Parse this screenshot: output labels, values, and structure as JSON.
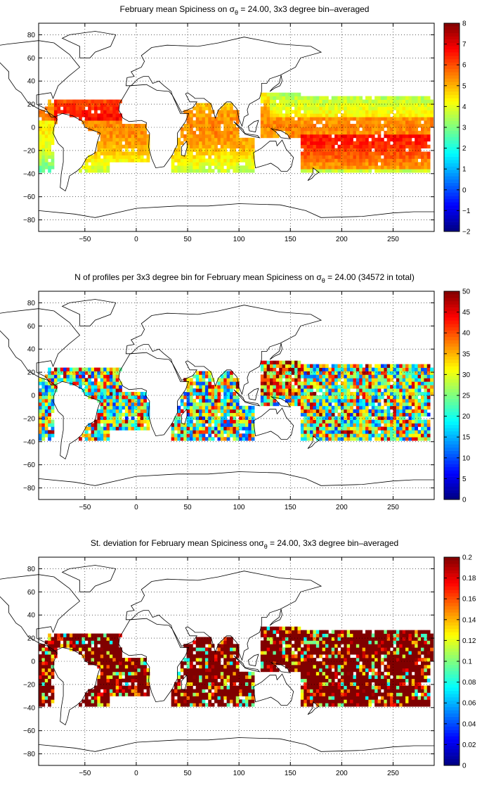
{
  "figure": {
    "background": "#ffffff"
  },
  "chart_data": [
    {
      "type": "heatmap",
      "title": {
        "pre": "February mean Spiciness on ",
        "sym": "σ",
        "sub": "θ",
        "post": " = 24.00, 3x3 degree bin–averaged"
      },
      "xlim": [
        -95,
        290
      ],
      "ylim": [
        -90,
        90
      ],
      "xticks": [
        -50,
        0,
        50,
        100,
        150,
        200,
        250
      ],
      "yticks": [
        -80,
        -60,
        -40,
        -20,
        0,
        20,
        40,
        60,
        80
      ],
      "xtick_labels": [
        "−50",
        "0",
        "50",
        "100",
        "150",
        "200",
        "250"
      ],
      "ytick_labels": [
        "−80",
        "−60",
        "−40",
        "−20",
        "0",
        "20",
        "40",
        "60",
        "80"
      ],
      "grid": "dotted",
      "colorbar": {
        "range": [
          -2,
          8
        ],
        "colormap": "jet",
        "placement": "right",
        "ticks": [
          -2,
          -1,
          0,
          1,
          2,
          3,
          4,
          5,
          6,
          7,
          8
        ],
        "tick_labels": [
          "−2",
          "−1",
          "0",
          "1",
          "2",
          "3",
          "4",
          "5",
          "6",
          "7",
          "8"
        ]
      },
      "field": "spice",
      "bin_size_deg": 3
    },
    {
      "type": "heatmap",
      "title": {
        "pre": "N of profiles per 3x3 degree bin for February mean Spiciness on ",
        "sym": "σ",
        "sub": "θ",
        "post": " = 24.00 (34572 in total)"
      },
      "xlim": [
        -95,
        290
      ],
      "ylim": [
        -90,
        90
      ],
      "xticks": [
        -50,
        0,
        50,
        100,
        150,
        200,
        250
      ],
      "yticks": [
        -80,
        -60,
        -40,
        -20,
        0,
        20,
        40,
        60,
        80
      ],
      "xtick_labels": [
        "−50",
        "0",
        "50",
        "100",
        "150",
        "200",
        "250"
      ],
      "ytick_labels": [
        "−80",
        "−60",
        "−40",
        "−20",
        "0",
        "20",
        "40",
        "60",
        "80"
      ],
      "grid": "dotted",
      "colorbar": {
        "range": [
          0,
          50
        ],
        "colormap": "jet",
        "placement": "right",
        "ticks": [
          0,
          5,
          10,
          15,
          20,
          25,
          30,
          35,
          40,
          45,
          50
        ],
        "tick_labels": [
          "0",
          "5",
          "10",
          "15",
          "20",
          "25",
          "30",
          "35",
          "40",
          "45",
          "50"
        ]
      },
      "field": "count",
      "total_profiles": 34572,
      "bin_size_deg": 3
    },
    {
      "type": "heatmap",
      "title": {
        "pre": "St. deviation for February mean Spiciness on",
        "sym": "σ",
        "sub": "θ",
        "post": " = 24.00, 3x3 degree bin–averaged"
      },
      "xlim": [
        -95,
        290
      ],
      "ylim": [
        -90,
        90
      ],
      "xticks": [
        -50,
        0,
        50,
        100,
        150,
        200,
        250
      ],
      "yticks": [
        -80,
        -60,
        -40,
        -20,
        0,
        20,
        40,
        60,
        80
      ],
      "xtick_labels": [
        "−50",
        "0",
        "50",
        "100",
        "150",
        "200",
        "250"
      ],
      "ytick_labels": [
        "−80",
        "−60",
        "−40",
        "−20",
        "0",
        "20",
        "40",
        "60",
        "80"
      ],
      "grid": "dotted",
      "colorbar": {
        "range": [
          0,
          0.2
        ],
        "colormap": "jet",
        "placement": "right",
        "ticks": [
          0,
          0.02,
          0.04,
          0.06,
          0.08,
          0.1,
          0.12,
          0.14,
          0.16,
          0.18,
          0.2
        ],
        "tick_labels": [
          "0",
          "0.02",
          "0.04",
          "0.06",
          "0.08",
          "0.1",
          "0.12",
          "0.14",
          "0.16",
          "0.18",
          "0.2"
        ]
      },
      "field": "std",
      "bin_size_deg": 3
    }
  ],
  "ocean_regions": [
    {
      "name": "atlantic-north-tropical",
      "lon": [
        -85,
        -15
      ],
      "lat": [
        3,
        24
      ]
    },
    {
      "name": "atlantic-equatorial",
      "lon": [
        -50,
        10
      ],
      "lat": [
        -6,
        4
      ]
    },
    {
      "name": "atlantic-south",
      "lon": [
        -40,
        12
      ],
      "lat": [
        -30,
        -6
      ]
    },
    {
      "name": "brazil-current",
      "lon": [
        -55,
        -25
      ],
      "lat": [
        -38,
        -20
      ]
    },
    {
      "name": "pacific-east-tropical",
      "lon": [
        -95,
        -80
      ],
      "lat": [
        -40,
        18
      ]
    },
    {
      "name": "indian-north",
      "lon": [
        42,
        100
      ],
      "lat": [
        -10,
        22
      ]
    },
    {
      "name": "indian-south",
      "lon": [
        35,
        115
      ],
      "lat": [
        -38,
        -10
      ]
    },
    {
      "name": "pacific-west",
      "lon": [
        120,
        160
      ],
      "lat": [
        -10,
        30
      ]
    },
    {
      "name": "pacific-central",
      "lon": [
        160,
        285
      ],
      "lat": [
        -40,
        28
      ]
    },
    {
      "name": "pacific-east-north",
      "lon": [
        250,
        290
      ],
      "lat": [
        0,
        25
      ]
    }
  ],
  "land_outlines": [
    {
      "name": "north-america",
      "lonlat": [
        [
          -168,
          66
        ],
        [
          -160,
          72
        ],
        [
          -140,
          70
        ],
        [
          -125,
          72
        ],
        [
          -95,
          75
        ],
        [
          -80,
          73
        ],
        [
          -65,
          63
        ],
        [
          -55,
          52
        ],
        [
          -66,
          44
        ],
        [
          -76,
          36
        ],
        [
          -81,
          25
        ],
        [
          -83,
          30
        ],
        [
          -97,
          28
        ],
        [
          -97,
          20
        ],
        [
          -88,
          16
        ],
        [
          -83,
          9
        ],
        [
          -79,
          9
        ],
        [
          -86,
          13
        ],
        [
          -95,
          16
        ],
        [
          -105,
          21
        ],
        [
          -112,
          30
        ],
        [
          -117,
          33
        ],
        [
          -124,
          42
        ],
        [
          -124,
          48
        ],
        [
          -135,
          58
        ],
        [
          -150,
          60
        ],
        [
          -165,
          60
        ],
        [
          -168,
          66
        ]
      ]
    },
    {
      "name": "south-america",
      "lonlat": [
        [
          -79,
          9
        ],
        [
          -72,
          12
        ],
        [
          -62,
          10
        ],
        [
          -52,
          5
        ],
        [
          -50,
          0
        ],
        [
          -35,
          -5
        ],
        [
          -38,
          -13
        ],
        [
          -40,
          -22
        ],
        [
          -48,
          -26
        ],
        [
          -53,
          -34
        ],
        [
          -58,
          -38
        ],
        [
          -65,
          -42
        ],
        [
          -67,
          -50
        ],
        [
          -69,
          -55
        ],
        [
          -74,
          -52
        ],
        [
          -73,
          -40
        ],
        [
          -71,
          -30
        ],
        [
          -71,
          -18
        ],
        [
          -76,
          -14
        ],
        [
          -81,
          -5
        ],
        [
          -80,
          0
        ],
        [
          -77,
          7
        ],
        [
          -79,
          9
        ]
      ]
    },
    {
      "name": "africa",
      "lonlat": [
        [
          -17,
          15
        ],
        [
          -16,
          21
        ],
        [
          -10,
          30
        ],
        [
          -6,
          36
        ],
        [
          10,
          37
        ],
        [
          20,
          32
        ],
        [
          32,
          31
        ],
        [
          35,
          28
        ],
        [
          43,
          12
        ],
        [
          51,
          12
        ],
        [
          48,
          5
        ],
        [
          40,
          -5
        ],
        [
          40,
          -15
        ],
        [
          35,
          -24
        ],
        [
          27,
          -34
        ],
        [
          19,
          -35
        ],
        [
          15,
          -27
        ],
        [
          12,
          -17
        ],
        [
          13,
          -5
        ],
        [
          9,
          0
        ],
        [
          10,
          4
        ],
        [
          5,
          6
        ],
        [
          -7,
          5
        ],
        [
          -13,
          8
        ],
        [
          -17,
          15
        ]
      ]
    },
    {
      "name": "eurasia",
      "lonlat": [
        [
          -10,
          36
        ],
        [
          -9,
          43
        ],
        [
          -2,
          44
        ],
        [
          -5,
          48
        ],
        [
          5,
          52
        ],
        [
          8,
          57
        ],
        [
          5,
          62
        ],
        [
          15,
          69
        ],
        [
          30,
          71
        ],
        [
          60,
          70
        ],
        [
          80,
          73
        ],
        [
          105,
          78
        ],
        [
          140,
          72
        ],
        [
          170,
          70
        ],
        [
          180,
          65
        ],
        [
          160,
          60
        ],
        [
          155,
          52
        ],
        [
          140,
          45
        ],
        [
          130,
          42
        ],
        [
          127,
          38
        ],
        [
          122,
          38
        ],
        [
          122,
          31
        ],
        [
          120,
          25
        ],
        [
          110,
          20
        ],
        [
          108,
          15
        ],
        [
          109,
          11
        ],
        [
          105,
          9
        ],
        [
          103,
          1
        ],
        [
          100,
          7
        ],
        [
          98,
          16
        ],
        [
          92,
          22
        ],
        [
          88,
          22
        ],
        [
          80,
          15
        ],
        [
          77,
          8
        ],
        [
          73,
          20
        ],
        [
          66,
          25
        ],
        [
          57,
          25
        ],
        [
          56,
          26
        ],
        [
          50,
          30
        ],
        [
          48,
          29
        ],
        [
          52,
          22
        ],
        [
          59,
          22
        ],
        [
          55,
          17
        ],
        [
          44,
          13
        ],
        [
          40,
          20
        ],
        [
          35,
          28
        ],
        [
          34,
          31
        ],
        [
          27,
          36
        ],
        [
          22,
          40
        ],
        [
          16,
          38
        ],
        [
          12,
          44
        ],
        [
          7,
          44
        ],
        [
          2,
          42
        ],
        [
          -5,
          36
        ],
        [
          -10,
          36
        ]
      ]
    },
    {
      "name": "australia",
      "lonlat": [
        [
          114,
          -22
        ],
        [
          122,
          -18
        ],
        [
          130,
          -12
        ],
        [
          136,
          -12
        ],
        [
          137,
          -16
        ],
        [
          142,
          -11
        ],
        [
          146,
          -19
        ],
        [
          153,
          -26
        ],
        [
          151,
          -34
        ],
        [
          147,
          -38
        ],
        [
          141,
          -38
        ],
        [
          138,
          -35
        ],
        [
          131,
          -31
        ],
        [
          124,
          -33
        ],
        [
          116,
          -35
        ],
        [
          114,
          -22
        ]
      ]
    },
    {
      "name": "greenland",
      "lonlat": [
        [
          -55,
          60
        ],
        [
          -45,
          60
        ],
        [
          -40,
          65
        ],
        [
          -25,
          70
        ],
        [
          -20,
          80
        ],
        [
          -40,
          83
        ],
        [
          -65,
          80
        ],
        [
          -72,
          77
        ],
        [
          -55,
          70
        ],
        [
          -55,
          60
        ]
      ]
    },
    {
      "name": "antarctica",
      "lonlat": [
        [
          -95,
          -72
        ],
        [
          -60,
          -75
        ],
        [
          -40,
          -78
        ],
        [
          0,
          -70
        ],
        [
          40,
          -68
        ],
        [
          70,
          -68
        ],
        [
          100,
          -66
        ],
        [
          140,
          -67
        ],
        [
          165,
          -72
        ],
        [
          180,
          -78
        ],
        [
          220,
          -77
        ],
        [
          250,
          -74
        ],
        [
          270,
          -73
        ],
        [
          290,
          -73
        ]
      ]
    },
    {
      "name": "new-zealand",
      "lonlat": [
        [
          172,
          -35
        ],
        [
          175,
          -37
        ],
        [
          178,
          -39
        ],
        [
          174,
          -41
        ],
        [
          171,
          -44
        ],
        [
          167,
          -46
        ],
        [
          172,
          -40
        ],
        [
          172,
          -35
        ]
      ]
    },
    {
      "name": "madagascar",
      "lonlat": [
        [
          49,
          -12
        ],
        [
          50,
          -16
        ],
        [
          47,
          -25
        ],
        [
          44,
          -24
        ],
        [
          44,
          -17
        ],
        [
          49,
          -12
        ]
      ]
    },
    {
      "name": "japan",
      "lonlat": [
        [
          130,
          31
        ],
        [
          135,
          34
        ],
        [
          140,
          36
        ],
        [
          142,
          40
        ],
        [
          141,
          45
        ],
        [
          139,
          38
        ],
        [
          133,
          34
        ],
        [
          130,
          31
        ]
      ]
    },
    {
      "name": "indonesia",
      "lonlat": [
        [
          95,
          5
        ],
        [
          104,
          -2
        ],
        [
          106,
          -6
        ],
        [
          115,
          -8
        ],
        [
          120,
          -9
        ],
        [
          118,
          -7
        ],
        [
          110,
          -6
        ],
        [
          105,
          -5
        ],
        [
          98,
          2
        ],
        [
          95,
          5
        ]
      ]
    },
    {
      "name": "new-guinea",
      "lonlat": [
        [
          131,
          -1
        ],
        [
          141,
          -3
        ],
        [
          147,
          -6
        ],
        [
          150,
          -10
        ],
        [
          141,
          -9
        ],
        [
          136,
          -4
        ],
        [
          131,
          -1
        ]
      ]
    },
    {
      "name": "borneo",
      "lonlat": [
        [
          109,
          1
        ],
        [
          115,
          5
        ],
        [
          119,
          6
        ],
        [
          117,
          0
        ],
        [
          116,
          -4
        ],
        [
          110,
          -3
        ],
        [
          109,
          1
        ]
      ]
    }
  ]
}
